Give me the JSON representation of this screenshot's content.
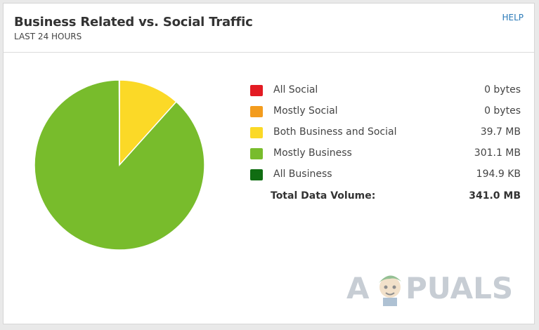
{
  "widget": {
    "title": "Business Related vs. Social Traffic",
    "subtitle": "LAST 24 HOURS",
    "help_label": "HELP"
  },
  "legend": {
    "items": [
      {
        "label": "All Social",
        "value": "0 bytes",
        "color": "#e31b23"
      },
      {
        "label": "Mostly Social",
        "value": "0 bytes",
        "color": "#f39c1e"
      },
      {
        "label": "Both Business and Social",
        "value": "39.7 MB",
        "color": "#fbd927"
      },
      {
        "label": "Mostly Business",
        "value": "301.1 MB",
        "color": "#78bc2c"
      },
      {
        "label": "All Business",
        "value": "194.9 KB",
        "color": "#106d12"
      }
    ],
    "total_label": "Total Data Volume:",
    "total_value": "341.0 MB"
  },
  "chart_data": {
    "type": "pie",
    "categories": [
      "All Social",
      "Mostly Social",
      "Both Business and Social",
      "Mostly Business",
      "All Business"
    ],
    "values": [
      0,
      0,
      39.7,
      301.1,
      0.19
    ],
    "unit": "MB",
    "colors": [
      "#e31b23",
      "#f39c1e",
      "#fbd927",
      "#78bc2c",
      "#106d12"
    ]
  },
  "watermark": {
    "text_left": "A",
    "text_right": "PUALS"
  }
}
